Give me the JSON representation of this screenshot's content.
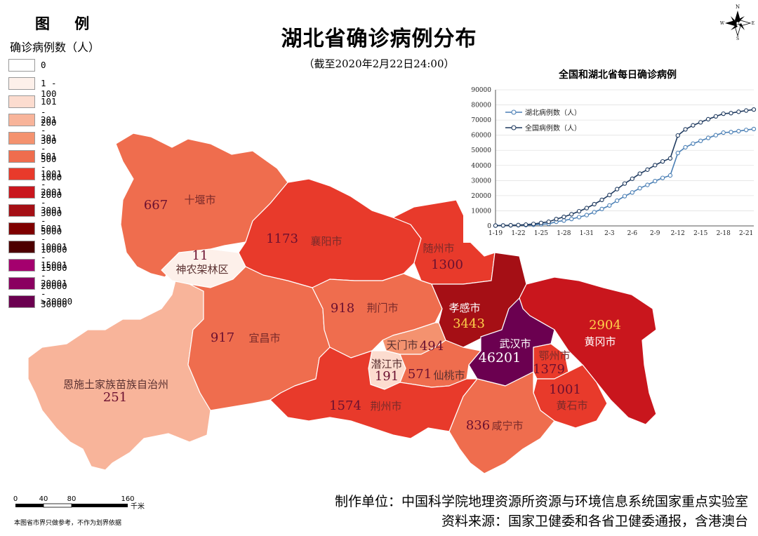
{
  "title": "湖北省确诊病例分布",
  "subtitle": "（截至2020年2月22日24:00）",
  "legend": {
    "title": "图 例",
    "subtitle": "确诊病例数（人）",
    "classes": [
      {
        "label": "0",
        "color": "#ffffff"
      },
      {
        "label": "1 - 100",
        "color": "#fdf0ea"
      },
      {
        "label": "101 - 200",
        "color": "#fcdccf"
      },
      {
        "label": "201 - 300",
        "color": "#f8b49a"
      },
      {
        "label": "301 - 500",
        "color": "#f4926f"
      },
      {
        "label": "501 - 1000",
        "color": "#ef6d4e"
      },
      {
        "label": "1001 - 2000",
        "color": "#e83a2b"
      },
      {
        "label": "2001 - 3000",
        "color": "#c9161d"
      },
      {
        "label": "3001 - 5000",
        "color": "#a50f15"
      },
      {
        "label": "5001 - 10000",
        "color": "#7f0000"
      },
      {
        "label": "10001 - 15000",
        "color": "#4d0000"
      },
      {
        "label": "15001 - 20000",
        "color": "#a4006e"
      },
      {
        "label": "20001 - 30000",
        "color": "#8a0060"
      },
      {
        "label": ">30000",
        "color": "#6b0050"
      }
    ]
  },
  "regions": [
    {
      "name": "十堰市",
      "count": "667",
      "color": "#ef6d4e"
    },
    {
      "name": "神农架林区",
      "count": "11",
      "color": "#fdf0ea"
    },
    {
      "name": "襄阳市",
      "count": "1173",
      "color": "#e83a2b"
    },
    {
      "name": "随州市",
      "count": "1300",
      "color": "#e83a2b"
    },
    {
      "name": "荆门市",
      "count": "918",
      "color": "#ef6d4e"
    },
    {
      "name": "宜昌市",
      "count": "917",
      "color": "#ef6d4e"
    },
    {
      "name": "恩施土家族苗族自治州",
      "count": "251",
      "color": "#f8b49a"
    },
    {
      "name": "孝感市",
      "count": "3443",
      "color": "#a50f15"
    },
    {
      "name": "黄冈市",
      "count": "2904",
      "color": "#c9161d"
    },
    {
      "name": "天门市",
      "count": "494",
      "color": "#f4926f"
    },
    {
      "name": "潜江市",
      "count": "191",
      "color": "#fcdccf"
    },
    {
      "name": "仙桃市",
      "count": "571",
      "color": "#ef6d4e"
    },
    {
      "name": "武汉市",
      "count": "46201",
      "color": "#6b0050"
    },
    {
      "name": "鄂州市",
      "count": "1379",
      "color": "#e83a2b"
    },
    {
      "name": "黄石市",
      "count": "1001",
      "color": "#e83a2b"
    },
    {
      "name": "荆州市",
      "count": "1574",
      "color": "#e83a2b"
    },
    {
      "name": "咸宁市",
      "count": "836",
      "color": "#ef6d4e"
    }
  ],
  "chart_data": {
    "type": "line",
    "title": "全国和湖北省每日确诊病例",
    "x_tick_labels": [
      "1-19",
      "1-22",
      "1-25",
      "1-28",
      "1-31",
      "2-3",
      "2-6",
      "2-9",
      "2-12",
      "2-15",
      "2-18",
      "2-21"
    ],
    "x": [
      "1-19",
      "1-20",
      "1-21",
      "1-22",
      "1-23",
      "1-24",
      "1-25",
      "1-26",
      "1-27",
      "1-28",
      "1-29",
      "1-30",
      "1-31",
      "2-1",
      "2-2",
      "2-3",
      "2-4",
      "2-5",
      "2-6",
      "2-7",
      "2-8",
      "2-9",
      "2-10",
      "2-11",
      "2-12",
      "2-13",
      "2-14",
      "2-15",
      "2-16",
      "2-17",
      "2-18",
      "2-19",
      "2-20",
      "2-21",
      "2-22"
    ],
    "ylim": [
      0,
      90000
    ],
    "y_ticks": [
      0,
      10000,
      20000,
      30000,
      40000,
      50000,
      60000,
      70000,
      80000,
      90000
    ],
    "legend_position": "top-left",
    "series": [
      {
        "name": "湖北病例数（人）",
        "color": "#4a7fb5",
        "values": [
          198,
          270,
          375,
          444,
          549,
          729,
          1052,
          1423,
          2714,
          3554,
          4586,
          5806,
          7153,
          9074,
          11177,
          13522,
          16678,
          19665,
          22112,
          24953,
          27100,
          29631,
          31728,
          33366,
          48206,
          51986,
          54406,
          56249,
          58182,
          59989,
          61682,
          62031,
          62662,
          63454,
          64084
        ]
      },
      {
        "name": "全国病例数（人）",
        "color": "#1f3a5f",
        "values": [
          198,
          291,
          440,
          571,
          830,
          1287,
          1975,
          2744,
          4515,
          5974,
          7711,
          9692,
          11791,
          14380,
          17205,
          20438,
          24324,
          28018,
          31161,
          34546,
          37198,
          40171,
          42638,
          44653,
          59804,
          63851,
          66492,
          68500,
          70548,
          72436,
          74185,
          74576,
          75465,
          76288,
          76936
        ]
      }
    ]
  },
  "scale_bar": {
    "labels": [
      "0",
      "40",
      "80",
      "160"
    ],
    "unit": "千米"
  },
  "north_arrow": {
    "n": "N",
    "s": "S",
    "e": "E",
    "w": "W"
  },
  "credits": {
    "producer": "制作单位：中国科学院地理资源所资源与环境信息系统国家重点实验室",
    "source": "资料来源：国家卫健委和各省卫健委通报，含港澳台"
  },
  "note": "本图省市界只做参考，不作为划界依据"
}
